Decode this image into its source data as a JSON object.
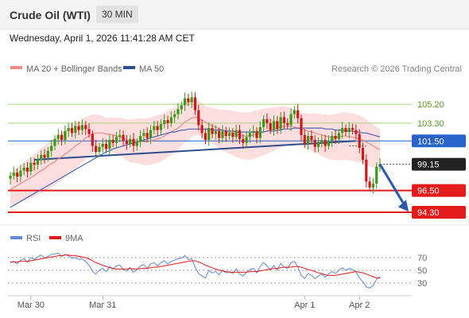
{
  "header": {
    "title": "Crude Oil (WTI)",
    "timeframe": "30 MIN"
  },
  "datetime": "Wednesday, April 1, 2026 11:41:28 AM CET",
  "legend": {
    "ma20_label": "MA 20 + Bollinger Bands",
    "ma50_label": "MA 50",
    "copyright": "Research © 2026 Trading Central",
    "rsi_label": "RSI",
    "ma9_label": "9MA"
  },
  "colors": {
    "bull": "#3a9a18",
    "bear": "#d01818",
    "band": "#fbd6d6",
    "ma20": "#f08a8a",
    "ma50": "#4a67b5",
    "resistance": "#a6d47a",
    "pivot": "#2962c9",
    "support": "#e31b1b",
    "rsi": "#6688dd",
    "rsi_ma": "#e31b1b"
  },
  "chart_data": [
    {
      "type": "candlestick",
      "title": "Crude Oil (WTI)",
      "timeframe": "30 MIN",
      "x_ticks": [
        "Mar 30",
        "Mar 31",
        "Apr 1",
        "Apr 2"
      ],
      "price_range": [
        93.5,
        107.7
      ],
      "levels": [
        {
          "value": "105.20",
          "kind": "resistance"
        },
        {
          "value": "103.30",
          "kind": "resistance"
        },
        {
          "value": "101.50",
          "kind": "pivot"
        },
        {
          "value": "99.15",
          "kind": "last"
        },
        {
          "value": "96.50",
          "kind": "support"
        },
        {
          "value": "94.30",
          "kind": "support"
        }
      ],
      "close": [
        98.0,
        98.3,
        97.9,
        98.5,
        98.8,
        98.4,
        99.3,
        99.1,
        99.6,
        100.1,
        99.8,
        100.5,
        101.0,
        101.7,
        102.1,
        101.6,
        102.5,
        102.8,
        102.3,
        103.0,
        102.6,
        103.1,
        102.7,
        102.2,
        101.0,
        100.4,
        100.9,
        101.2,
        100.7,
        101.6,
        101.3,
        101.9,
        102.1,
        101.5,
        101.2,
        101.7,
        101.0,
        101.4,
        102.0,
        102.3,
        101.8,
        102.6,
        103.0,
        102.6,
        103.2,
        103.6,
        103.3,
        103.9,
        104.2,
        104.7,
        105.1,
        105.8,
        105.4,
        105.9,
        104.6,
        103.1,
        102.3,
        101.6,
        102.8,
        102.2,
        102.5,
        101.8,
        102.5,
        102.0,
        102.3,
        101.9,
        102.6,
        101.7,
        101.3,
        101.9,
        102.3,
        102.5,
        101.8,
        102.9,
        103.7,
        103.3,
        102.6,
        103.5,
        102.7,
        103.9,
        103.3,
        103.1,
        104.2,
        104.6,
        103.8,
        102.1,
        101.2,
        102.0,
        101.6,
        100.9,
        101.3,
        101.6,
        101.0,
        101.5,
        102.0,
        101.7,
        102.3,
        102.8,
        102.4,
        102.8,
        102.6,
        102.2,
        100.8,
        99.6,
        97.4,
        96.8,
        97.2,
        98.9,
        99.15
      ],
      "ma20": [
        96.6,
        96.8,
        97.0,
        97.2,
        97.4,
        97.6,
        97.8,
        98.0,
        98.3,
        98.5,
        98.7,
        99.0,
        99.2,
        99.4,
        99.7,
        99.9,
        100.2,
        100.4,
        100.7,
        101.0,
        101.2,
        101.5,
        101.8,
        102.0,
        102.2,
        102.3,
        102.3,
        102.3,
        102.2,
        102.2,
        102.1,
        102.0,
        101.9,
        101.8,
        101.6,
        101.5,
        101.5,
        101.5,
        101.5,
        101.4,
        101.4,
        101.5,
        101.6,
        101.7,
        101.8,
        102.0,
        102.2,
        102.4,
        102.6,
        102.8,
        103.1,
        103.4,
        103.6,
        103.8,
        103.9,
        103.8,
        103.6,
        103.4,
        103.2,
        103.0,
        102.9,
        102.7,
        102.6,
        102.5,
        102.4,
        102.3,
        102.2,
        102.1,
        102.0,
        102.0,
        102.0,
        102.1,
        102.2,
        102.3,
        102.4,
        102.5,
        102.6,
        102.7,
        102.8,
        102.9,
        103.0,
        103.0,
        103.0,
        102.9,
        102.8,
        102.7,
        102.6,
        102.5,
        102.4,
        102.3,
        102.2,
        102.1,
        102.0,
        101.9,
        101.9,
        101.9,
        101.9,
        102.0,
        102.0,
        101.9,
        101.9,
        101.8,
        101.7,
        101.6,
        101.4,
        101.2,
        101.0,
        100.8,
        100.6
      ],
      "ma50": [
        94.8,
        95.0,
        95.2,
        95.4,
        95.6,
        95.8,
        96.0,
        96.2,
        96.4,
        96.6,
        96.8,
        97.0,
        97.2,
        97.4,
        97.6,
        97.8,
        98.0,
        98.2,
        98.4,
        98.6,
        98.8,
        99.0,
        99.2,
        99.4,
        99.6,
        99.8,
        100.0,
        100.2,
        100.4,
        100.5,
        100.7,
        100.8,
        100.9,
        101.0,
        101.1,
        101.2,
        101.3,
        101.4,
        101.5,
        101.6,
        101.7,
        101.8,
        101.9,
        102.0,
        102.1,
        102.2,
        102.3,
        102.4,
        102.4,
        102.5,
        102.6,
        102.6,
        102.7,
        102.7,
        102.7,
        102.7,
        102.7,
        102.7,
        102.7,
        102.6,
        102.6,
        102.6,
        102.6,
        102.5,
        102.5,
        102.5,
        102.4,
        102.4,
        102.4,
        102.4,
        102.4,
        102.4,
        102.4,
        102.4,
        102.4,
        102.5,
        102.5,
        102.5,
        102.6,
        102.6,
        102.7,
        102.7,
        102.7,
        102.8,
        102.8,
        102.8,
        102.8,
        102.8,
        102.8,
        102.8,
        102.8,
        102.8,
        102.7,
        102.7,
        102.7,
        102.6,
        102.6,
        102.6,
        102.5,
        102.5,
        102.5,
        102.4,
        102.4,
        102.3,
        102.3,
        102.2,
        102.1,
        102.0,
        101.9
      ]
    },
    {
      "type": "line",
      "title": "RSI",
      "y_ticks": [
        "70",
        "50",
        "30"
      ],
      "ylim": [
        15,
        85
      ],
      "series": [
        {
          "name": "RSI",
          "values": [
            62,
            64,
            60,
            66,
            68,
            63,
            70,
            67,
            71,
            74,
            69,
            72,
            75,
            76,
            77,
            72,
            75,
            73,
            69,
            70,
            67,
            68,
            64,
            58,
            48,
            44,
            50,
            53,
            48,
            56,
            52,
            57,
            58,
            51,
            49,
            54,
            47,
            51,
            57,
            59,
            53,
            60,
            62,
            57,
            62,
            65,
            60,
            64,
            66,
            68,
            69,
            73,
            67,
            68,
            55,
            45,
            41,
            38,
            50,
            46,
            48,
            43,
            50,
            46,
            48,
            45,
            52,
            44,
            41,
            47,
            51,
            53,
            46,
            56,
            62,
            57,
            50,
            58,
            50,
            61,
            55,
            53,
            62,
            64,
            55,
            42,
            37,
            45,
            42,
            37,
            41,
            44,
            39,
            44,
            48,
            45,
            50,
            54,
            50,
            53,
            51,
            47,
            38,
            32,
            24,
            22,
            26,
            36,
            40
          ]
        },
        {
          "name": "9MA",
          "values": [
            63,
            63,
            63,
            64,
            64,
            64,
            65,
            66,
            67,
            68,
            69,
            70,
            71,
            72,
            73,
            73,
            74,
            74,
            73,
            73,
            72,
            71,
            70,
            68,
            65,
            62,
            60,
            58,
            56,
            54,
            53,
            52,
            52,
            52,
            52,
            53,
            52,
            52,
            53,
            53,
            53,
            54,
            55,
            55,
            56,
            57,
            58,
            59,
            60,
            61,
            62,
            63,
            64,
            65,
            65,
            63,
            61,
            58,
            56,
            54,
            52,
            50,
            49,
            48,
            47,
            47,
            47,
            47,
            47,
            47,
            48,
            48,
            48,
            49,
            50,
            51,
            52,
            53,
            53,
            54,
            55,
            55,
            55,
            56,
            56,
            55,
            53,
            51,
            50,
            48,
            46,
            45,
            43,
            42,
            42,
            42,
            43,
            44,
            45,
            46,
            47,
            48,
            47,
            46,
            44,
            42,
            40,
            38,
            38
          ]
        }
      ]
    }
  ]
}
